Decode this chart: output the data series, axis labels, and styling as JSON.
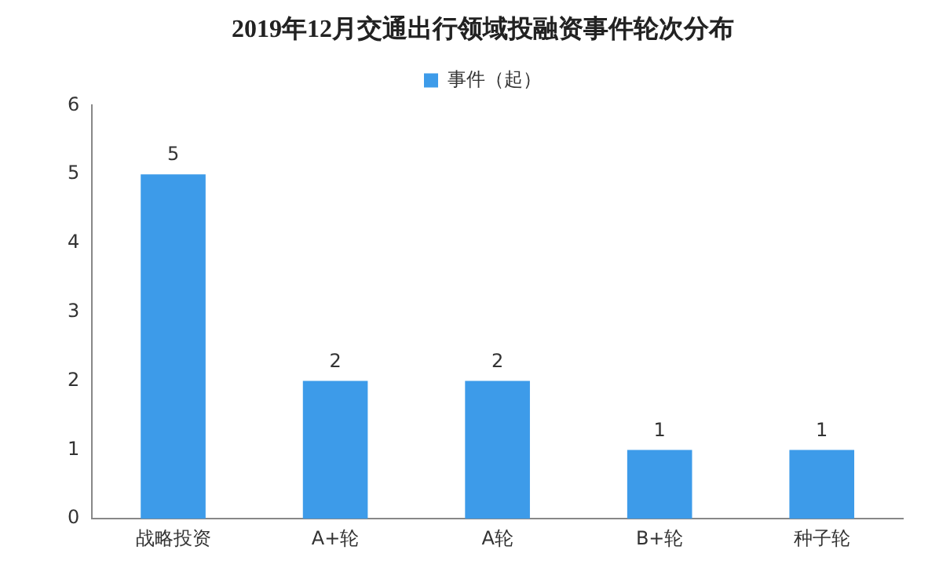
{
  "chart_data": {
    "type": "bar",
    "title": "2019年12月交通出行领域投融资事件轮次分布",
    "categories": [
      "战略投资",
      "A+轮",
      "A轮",
      "B+轮",
      "种子轮"
    ],
    "series": [
      {
        "name": "事件（起）",
        "color": "#3d9be9",
        "values": [
          5,
          2,
          2,
          1,
          1
        ]
      }
    ],
    "ylim": [
      0,
      6
    ],
    "yticks": [
      0,
      1,
      2,
      3,
      4,
      5,
      6
    ],
    "grid": false,
    "legend": "top",
    "data_labels": true
  }
}
